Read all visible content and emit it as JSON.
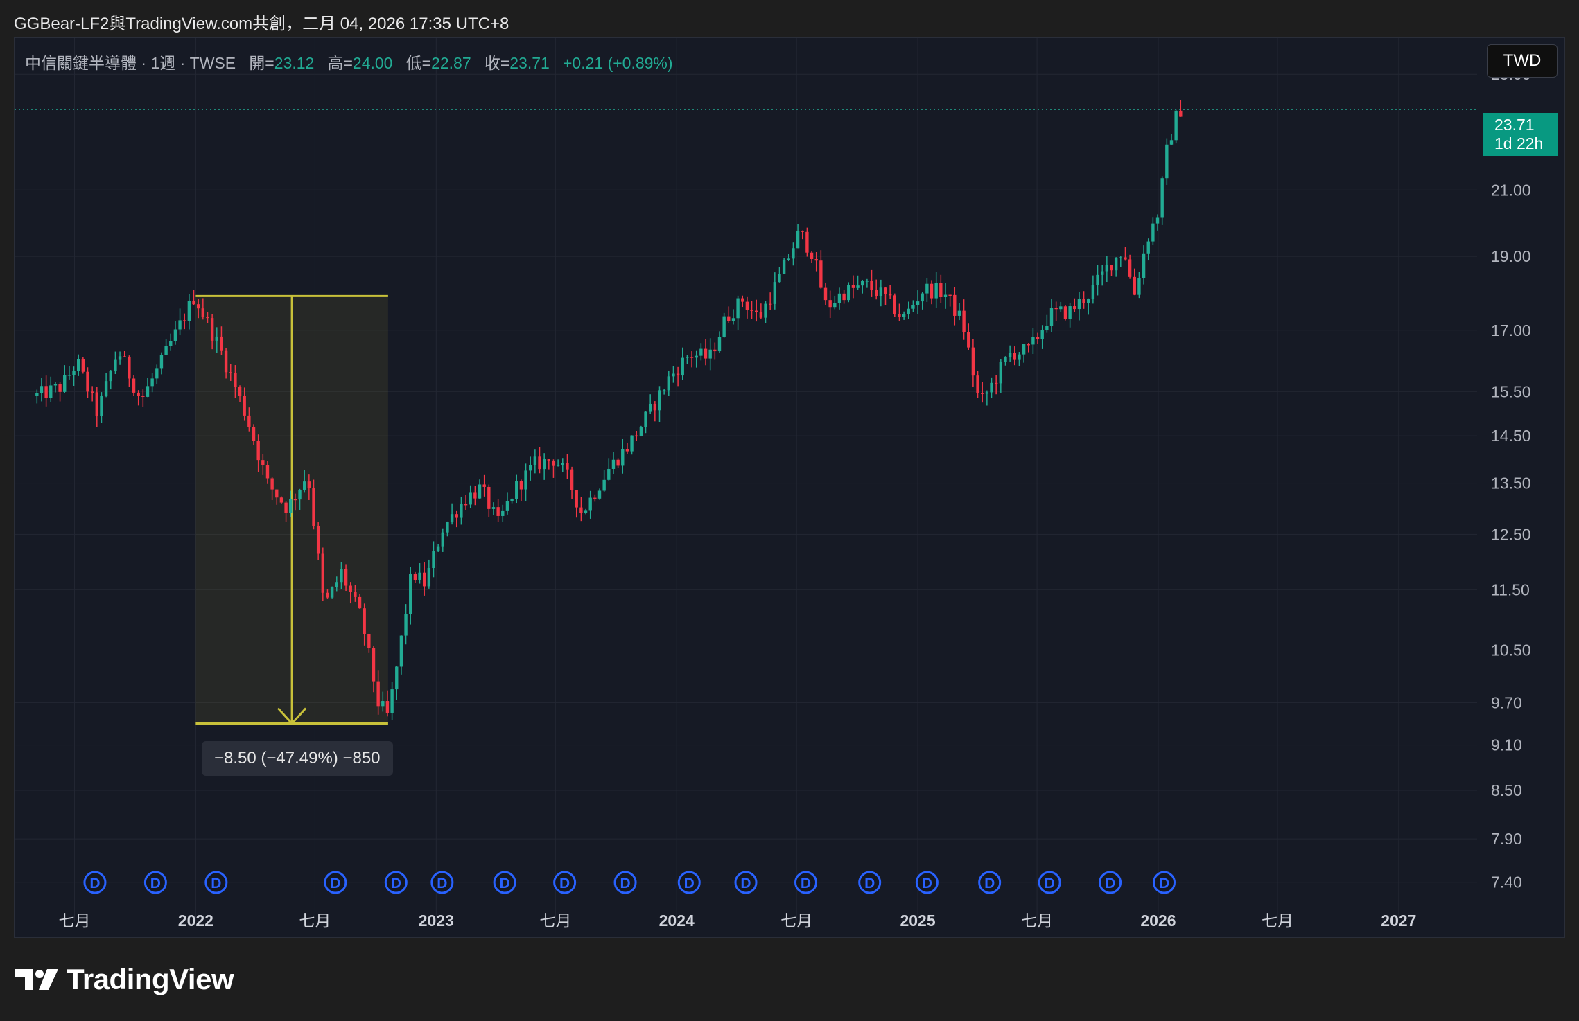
{
  "caption": "GGBear-LF2與TradingView.com共創，二月 04, 2026 17:35 UTC+8",
  "legend": {
    "symbol": "中信關鍵半導體 · 1週 · TWSE",
    "open_label": "開=",
    "open": "23.12",
    "high_label": "高=",
    "high": "24.00",
    "low_label": "低=",
    "low": "22.87",
    "close_label": "收=",
    "close": "23.71",
    "change": "+0.21 (+0.89%)"
  },
  "currency_button": "TWD",
  "price_tag": {
    "price": "23.71",
    "countdown": "1d 22h"
  },
  "measure_label": "−8.50 (−47.49%) −850",
  "brand": "TradingView",
  "colors": {
    "up": "#22ab94",
    "down": "#f23645",
    "background": "#161a25",
    "grid": "#232733",
    "measure": "#c8c13a",
    "dividend": "#2962ff"
  },
  "chart_data": {
    "type": "candlestick",
    "interval": "weekly",
    "x_range": [
      "2021-04-01",
      "2027-04-30"
    ],
    "y_scale": "log",
    "y_range": [
      7.2,
      26.4
    ],
    "grid": true,
    "y_ticks": [
      "25.00",
      "21.00",
      "19.00",
      "17.00",
      "15.50",
      "14.50",
      "13.50",
      "12.50",
      "11.50",
      "10.50",
      "9.70",
      "9.10",
      "8.50",
      "7.90",
      "7.40"
    ],
    "x_ticks": [
      {
        "label": "七月",
        "date": "2021-07-01",
        "bold": false
      },
      {
        "label": "2022",
        "date": "2022-01-01",
        "bold": true
      },
      {
        "label": "七月",
        "date": "2022-07-01",
        "bold": false
      },
      {
        "label": "2023",
        "date": "2023-01-01",
        "bold": true
      },
      {
        "label": "七月",
        "date": "2023-07-01",
        "bold": false
      },
      {
        "label": "2024",
        "date": "2024-01-01",
        "bold": true
      },
      {
        "label": "七月",
        "date": "2024-07-01",
        "bold": false
      },
      {
        "label": "2025",
        "date": "2025-01-01",
        "bold": true
      },
      {
        "label": "七月",
        "date": "2025-07-01",
        "bold": false
      },
      {
        "label": "2026",
        "date": "2026-01-01",
        "bold": true
      },
      {
        "label": "七月",
        "date": "2026-07-01",
        "bold": false
      },
      {
        "label": "2027",
        "date": "2027-01-01",
        "bold": true
      }
    ],
    "last_price": 23.71,
    "measure": {
      "from_date": "2022-01-01",
      "to_date": "2022-10-20",
      "from_price": 17.9,
      "to_price": 9.4
    },
    "dividend_marker_label": "D",
    "dividends": [
      "2021-08-01",
      "2021-11-01",
      "2022-02-01",
      "2022-08-01",
      "2022-11-01",
      "2023-01-10",
      "2023-04-15",
      "2023-07-15",
      "2023-10-15",
      "2024-01-20",
      "2024-04-15",
      "2024-07-15",
      "2024-10-20",
      "2025-01-15",
      "2025-04-20",
      "2025-07-20",
      "2025-10-20",
      "2026-01-10"
    ],
    "path_points": [
      [
        "2021-05-05",
        15.4
      ],
      [
        "2021-06-10",
        15.6
      ],
      [
        "2021-07-05",
        16.2
      ],
      [
        "2021-08-05",
        15.0
      ],
      [
        "2021-09-05",
        16.5
      ],
      [
        "2021-10-10",
        15.3
      ],
      [
        "2021-11-10",
        16.2
      ],
      [
        "2021-12-10",
        17.2
      ],
      [
        "2021-12-30",
        17.9
      ],
      [
        "2022-02-05",
        16.6
      ],
      [
        "2022-03-05",
        15.5
      ],
      [
        "2022-03-20",
        14.9
      ],
      [
        "2022-04-20",
        13.5
      ],
      [
        "2022-05-20",
        13.0
      ],
      [
        "2022-06-20",
        13.7
      ],
      [
        "2022-07-15",
        11.2
      ],
      [
        "2022-08-10",
        11.8
      ],
      [
        "2022-09-10",
        11.0
      ],
      [
        "2022-10-05",
        9.7
      ],
      [
        "2022-10-20",
        9.5
      ],
      [
        "2022-11-05",
        10.4
      ],
      [
        "2022-11-25",
        11.8
      ],
      [
        "2022-12-15",
        11.6
      ],
      [
        "2023-01-10",
        12.6
      ],
      [
        "2023-02-15",
        13.2
      ],
      [
        "2023-03-10",
        13.4
      ],
      [
        "2023-04-05",
        12.7
      ],
      [
        "2023-05-01",
        13.4
      ],
      [
        "2023-06-01",
        13.9
      ],
      [
        "2023-07-01",
        14.0
      ],
      [
        "2023-07-20",
        13.6
      ],
      [
        "2023-08-10",
        12.9
      ],
      [
        "2023-09-20",
        13.8
      ],
      [
        "2023-10-20",
        14.3
      ],
      [
        "2023-11-20",
        15.0
      ],
      [
        "2023-12-20",
        15.8
      ],
      [
        "2024-01-20",
        16.4
      ],
      [
        "2024-02-20",
        16.3
      ],
      [
        "2024-03-15",
        17.3
      ],
      [
        "2024-04-10",
        17.8
      ],
      [
        "2024-05-05",
        17.3
      ],
      [
        "2024-06-05",
        18.4
      ],
      [
        "2024-07-05",
        19.7
      ],
      [
        "2024-07-25",
        19.1
      ],
      [
        "2024-08-15",
        17.6
      ],
      [
        "2024-09-10",
        18.0
      ],
      [
        "2024-10-15",
        18.2
      ],
      [
        "2024-11-10",
        17.9
      ],
      [
        "2024-12-10",
        17.3
      ],
      [
        "2025-01-10",
        18.1
      ],
      [
        "2025-02-10",
        18.0
      ],
      [
        "2025-03-10",
        17.2
      ],
      [
        "2025-04-05",
        15.2
      ],
      [
        "2025-04-25",
        15.7
      ],
      [
        "2025-05-20",
        16.4
      ],
      [
        "2025-06-20",
        16.5
      ],
      [
        "2025-07-20",
        17.4
      ],
      [
        "2025-08-20",
        17.5
      ],
      [
        "2025-09-20",
        18.0
      ],
      [
        "2025-10-20",
        18.8
      ],
      [
        "2025-11-10",
        19.2
      ],
      [
        "2025-11-25",
        17.9
      ],
      [
        "2025-12-15",
        19.5
      ],
      [
        "2026-01-01",
        20.3
      ],
      [
        "2026-01-15",
        22.4
      ],
      [
        "2026-01-29",
        23.5
      ],
      [
        "2026-02-04",
        23.71
      ]
    ]
  }
}
